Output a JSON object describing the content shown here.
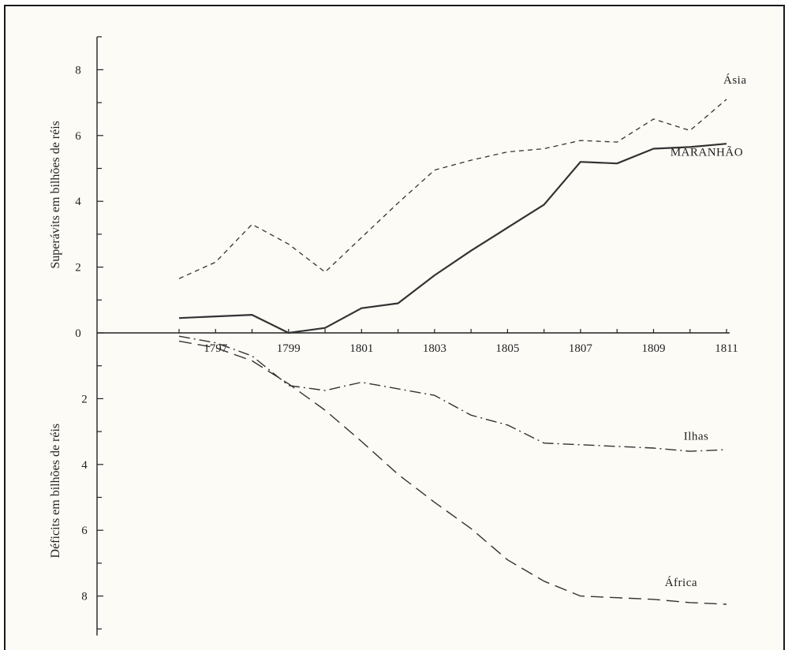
{
  "chart_data": {
    "type": "line",
    "title": "",
    "x": [
      1796,
      1797,
      1798,
      1799,
      1800,
      1801,
      1802,
      1803,
      1804,
      1805,
      1806,
      1807,
      1808,
      1809,
      1810,
      1811
    ],
    "xticks": [
      "1797",
      "1799",
      "1801",
      "1803",
      "1805",
      "1807",
      "1809",
      "1811"
    ],
    "xlim": [
      1796,
      1811
    ],
    "ylim": [
      -9,
      9
    ],
    "yticks_upper": [
      "0",
      "2",
      "4",
      "6",
      "8"
    ],
    "yticks_lower": [
      "2",
      "4",
      "6",
      "8"
    ],
    "ylabel_upper": "Superávits em bilhões de réis",
    "ylabel_lower": "Déficits em bilhões de réis",
    "grid": false,
    "series": [
      {
        "name": "Ásia",
        "style": "short-dash",
        "values": [
          1.65,
          2.15,
          3.3,
          2.7,
          1.85,
          2.9,
          3.95,
          4.95,
          5.25,
          5.5,
          5.6,
          5.85,
          5.8,
          6.5,
          6.15,
          7.1
        ]
      },
      {
        "name": "MARANHÃO",
        "style": "solid",
        "values": [
          0.45,
          0.5,
          0.55,
          0.0,
          0.15,
          0.75,
          0.9,
          1.75,
          2.5,
          3.2,
          3.9,
          5.2,
          5.15,
          5.6,
          5.65,
          5.75
        ]
      },
      {
        "name": "Ilhas",
        "style": "dash-dot",
        "values": [
          -0.1,
          -0.3,
          -0.7,
          -1.6,
          -1.75,
          -1.5,
          -1.7,
          -1.9,
          -2.5,
          -2.8,
          -3.35,
          -3.4,
          -3.45,
          -3.5,
          -3.6,
          -3.55
        ]
      },
      {
        "name": "África",
        "style": "long-dash",
        "values": [
          -0.25,
          -0.45,
          -0.85,
          -1.55,
          -2.35,
          -3.3,
          -4.3,
          -5.15,
          -5.95,
          -6.9,
          -7.55,
          -8.0,
          -8.05,
          -8.1,
          -8.2,
          -8.25
        ]
      }
    ],
    "colors": {
      "line": "#333333",
      "axis": "#222222",
      "background": "#fdfbf6"
    }
  }
}
